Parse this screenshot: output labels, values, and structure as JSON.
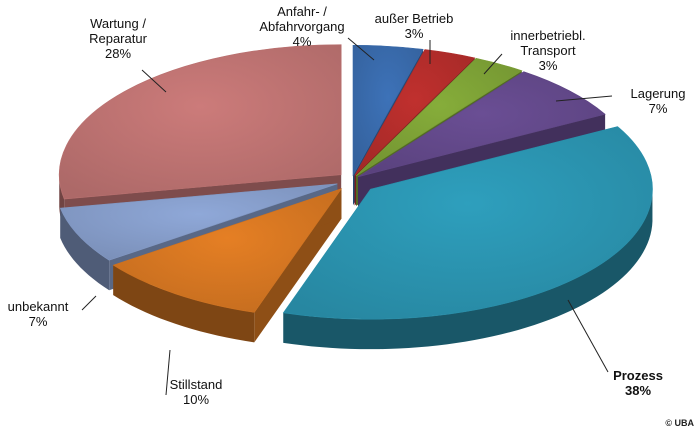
{
  "chart_data": {
    "type": "pie",
    "style": "3d-exploded",
    "slices": [
      {
        "label_lines": [
          "Anfahr- /",
          "Abfahrvorgang"
        ],
        "value_text": "4%",
        "value": 4,
        "color": "#3d72b8"
      },
      {
        "label_lines": [
          "außer Betrieb"
        ],
        "value_text": "3%",
        "value": 3,
        "color": "#c0302e"
      },
      {
        "label_lines": [
          "innerbetriebl.",
          "Transport"
        ],
        "value_text": "3%",
        "value": 3,
        "color": "#86ad3a"
      },
      {
        "label_lines": [
          "Lagerung"
        ],
        "value_text": "7%",
        "value": 7,
        "color": "#6a4e94"
      },
      {
        "label_lines": [
          "Prozess"
        ],
        "value_text": "38%",
        "value": 38,
        "color": "#2e9fbd",
        "bold": true
      },
      {
        "label_lines": [
          "Stillstand"
        ],
        "value_text": "10%",
        "value": 10,
        "color": "#e57f24"
      },
      {
        "label_lines": [
          "unbekannt"
        ],
        "value_text": "7%",
        "value": 7,
        "color": "#8fa8d8"
      },
      {
        "label_lines": [
          "Wartung /",
          "Reparatur"
        ],
        "value_text": "28%",
        "value": 28,
        "color": "#cc7b7a"
      }
    ],
    "legend": "none"
  },
  "copyright": "© UBA"
}
